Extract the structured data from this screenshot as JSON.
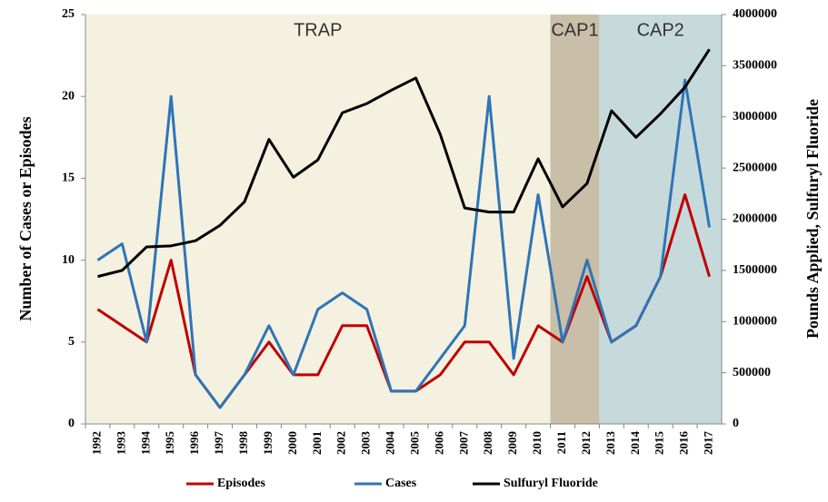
{
  "chart_data": {
    "type": "line",
    "ylabel": "Number of Cases or Episodes",
    "y2label": "Pounds Applied, Sulfuryl Fluoride",
    "categories": [
      "1992",
      "1993",
      "1994",
      "1995",
      "1996",
      "1997",
      "1998",
      "1999",
      "2000",
      "2001",
      "2002",
      "2003",
      "2004",
      "2005",
      "2006",
      "2007",
      "2008",
      "2009",
      "2010",
      "2011",
      "2012",
      "2013",
      "2014",
      "2015",
      "2016",
      "2017"
    ],
    "series": [
      {
        "name": "Episodes",
        "color": "#c00000",
        "values": [
          7,
          6,
          5,
          10,
          3,
          1,
          3,
          5,
          3,
          3,
          6,
          6,
          2,
          2,
          3,
          5,
          5,
          3,
          6,
          5,
          9,
          5,
          6,
          9,
          14,
          9
        ]
      },
      {
        "name": "Cases",
        "color": "#2e75b6",
        "values": [
          10,
          11,
          5,
          20,
          3,
          1,
          3,
          6,
          3,
          7,
          8,
          7,
          2,
          2,
          4,
          6,
          20,
          4,
          14,
          5,
          10,
          5,
          6,
          9,
          21,
          12
        ]
      },
      {
        "name": "Sulfuryl Fluoride",
        "color": "#000000",
        "axis": "y2",
        "values": [
          1440000,
          1500000,
          1730000,
          1740000,
          1790000,
          1940000,
          2170000,
          2780000,
          2410000,
          2580000,
          3040000,
          3130000,
          3260000,
          3380000,
          2830000,
          2110000,
          2070000,
          2070000,
          2590000,
          2120000,
          2350000,
          3060000,
          2800000,
          3030000,
          3290000,
          3660000
        ]
      }
    ],
    "regions": [
      {
        "label": "TRAP",
        "start": "1992",
        "end": "2010",
        "color": "#f4f1e0"
      },
      {
        "label": "CAP1",
        "start": "2011",
        "end": "2012",
        "color": "#c9bea7"
      },
      {
        "label": "CAP2",
        "start": "2013",
        "end": "2017",
        "color": "#c6dadb"
      }
    ],
    "ylim": [
      0,
      25
    ],
    "yticks": [
      0,
      5,
      10,
      15,
      20,
      25
    ],
    "y2lim": [
      0,
      4000000
    ],
    "y2ticks": [
      0,
      500000,
      1000000,
      1500000,
      2000000,
      2500000,
      3000000,
      3500000,
      4000000
    ],
    "legend": "bottom"
  }
}
